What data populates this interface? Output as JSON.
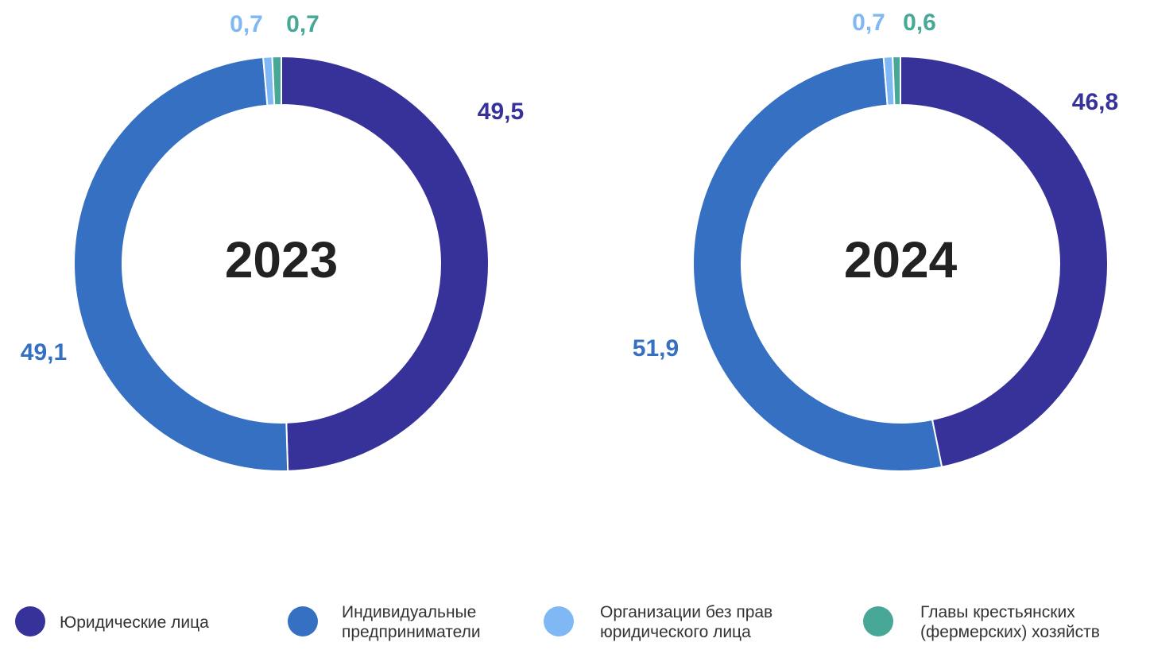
{
  "chart_data": [
    {
      "type": "donut",
      "title": "2023",
      "categories": [
        "Юридические лица",
        "Индивидуальные предприниматели",
        "Организации без прав юридического лица",
        "Главы крестьянских (фермерских) хозяйств"
      ],
      "values": [
        49.5,
        49.1,
        0.7,
        0.7
      ],
      "value_labels": [
        "49,5",
        "49,1",
        "0,7",
        "0,7"
      ],
      "colors": [
        "#37329a",
        "#3670c2",
        "#7fb8f5",
        "#47a898"
      ]
    },
    {
      "type": "donut",
      "title": "2024",
      "categories": [
        "Юридические лица",
        "Индивидуальные предприниматели",
        "Организации без прав юридического лица",
        "Главы крестьянских (фермерских) хозяйств"
      ],
      "values": [
        46.8,
        51.9,
        0.7,
        0.6
      ],
      "value_labels": [
        "46,8",
        "51,9",
        "0,7",
        "0,6"
      ],
      "colors": [
        "#37329a",
        "#3670c2",
        "#7fb8f5",
        "#47a898"
      ]
    }
  ]
}
